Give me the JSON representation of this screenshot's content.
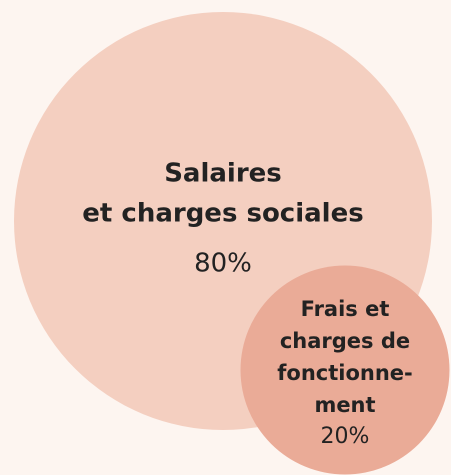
{
  "chart_data": {
    "type": "bubble",
    "categories": [
      [
        "Salaires",
        "et charges sociales"
      ],
      [
        "Frais et",
        "charges de",
        "fonctionne-",
        "ment"
      ]
    ],
    "values": [
      80,
      20
    ],
    "value_labels": [
      "80%",
      "20%"
    ],
    "colors": [
      "#f4cfc0",
      "#eaab97"
    ]
  }
}
